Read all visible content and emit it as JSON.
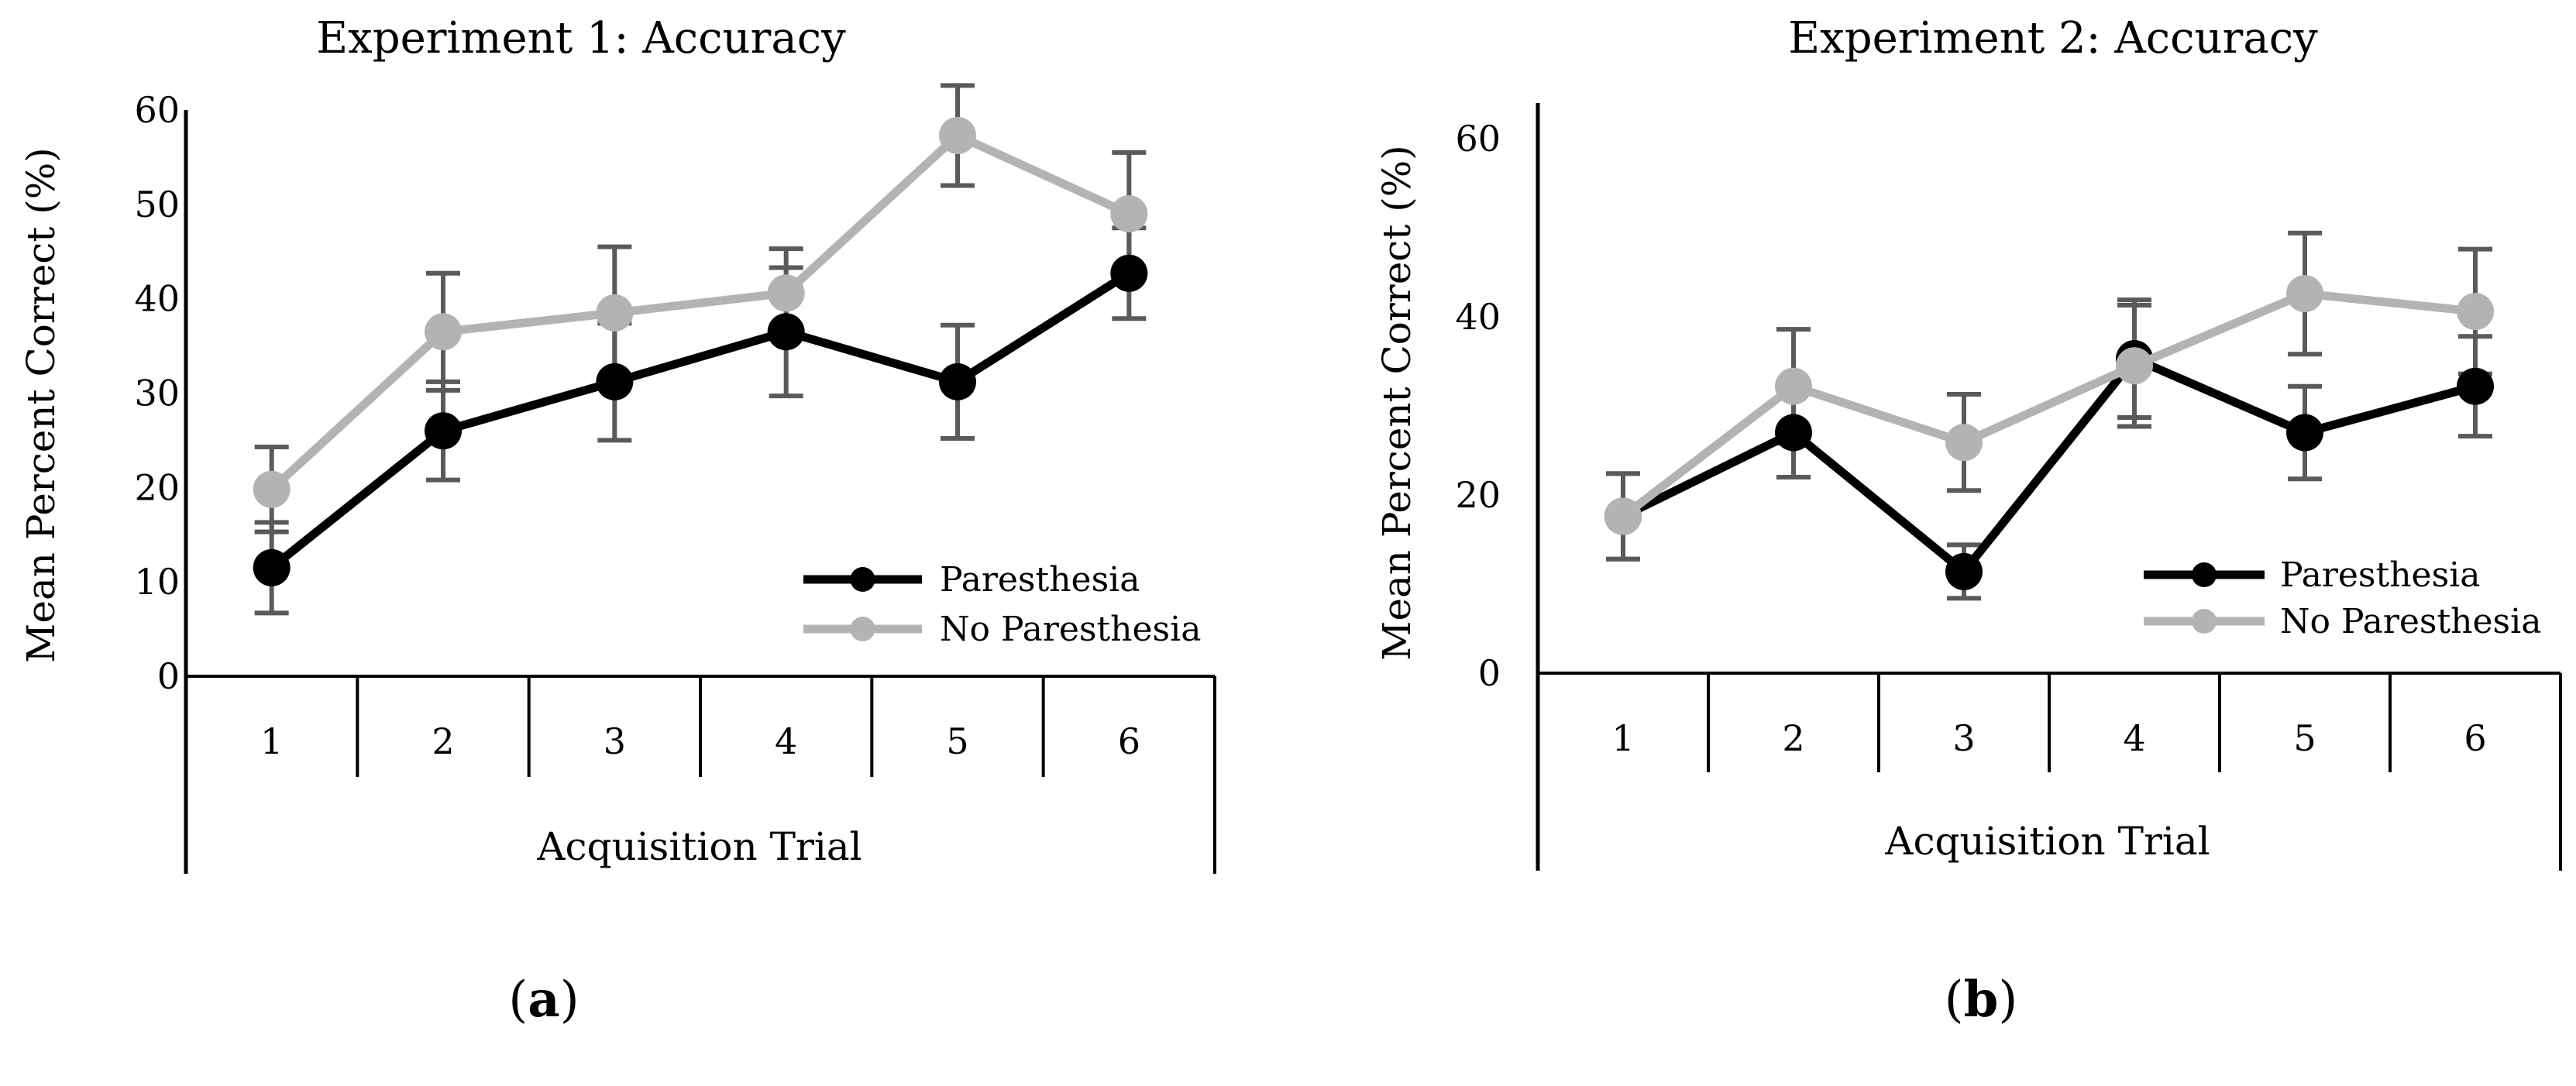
{
  "chart_data": [
    {
      "type": "line",
      "title": "Experiment 1: Accuracy",
      "xlabel": "Acquisition Trial",
      "ylabel": "Mean Percent Correct (%)",
      "panel_label": "a",
      "categories": [
        "1",
        "2",
        "3",
        "4",
        "5",
        "6"
      ],
      "ylim": [
        0,
        60
      ],
      "yticks": [
        "0",
        "10",
        "20",
        "30",
        "40",
        "50",
        "60"
      ],
      "ytick_values": [
        0,
        10,
        20,
        30,
        40,
        50,
        60
      ],
      "legend_position": "bottom-right",
      "series": [
        {
          "name": "Paresthesia",
          "color": "#000000",
          "values": [
            11.5,
            26,
            31.2,
            36.5,
            31.2,
            42.7
          ],
          "error": [
            4.8,
            5.2,
            6.2,
            6.8,
            6.0,
            4.8
          ]
        },
        {
          "name": "No Paresthesia",
          "color": "#b3b3b3",
          "values": [
            19.8,
            36.5,
            38.5,
            40.6,
            57.3,
            49
          ],
          "error": [
            4.5,
            6.2,
            7.0,
            4.7,
            5.3,
            6.5
          ]
        }
      ]
    },
    {
      "type": "line",
      "title": "Experiment 2: Accuracy",
      "xlabel": "Acquisition Trial",
      "ylabel": "Mean Percent Correct (%)",
      "panel_label": "b",
      "categories": [
        "1",
        "2",
        "3",
        "4",
        "5",
        "6"
      ],
      "ylim": [
        0,
        64
      ],
      "yticks": [
        "0",
        "20",
        "40",
        "60"
      ],
      "ytick_values": [
        0,
        20,
        40,
        60
      ],
      "legend_position": "bottom-right",
      "series": [
        {
          "name": "Paresthesia",
          "color": "#000000",
          "values": [
            17.6,
            27,
            11.4,
            35.3,
            27,
            32.2
          ],
          "error": [
            4.8,
            5.0,
            3.0,
            6.6,
            5.2,
            5.6
          ]
        },
        {
          "name": "No Paresthesia",
          "color": "#b3b3b3",
          "values": [
            17.6,
            32.2,
            25.9,
            34.5,
            42.6,
            40.6
          ],
          "error": [
            4.8,
            6.4,
            5.4,
            6.8,
            6.8,
            7.0
          ]
        }
      ]
    }
  ]
}
